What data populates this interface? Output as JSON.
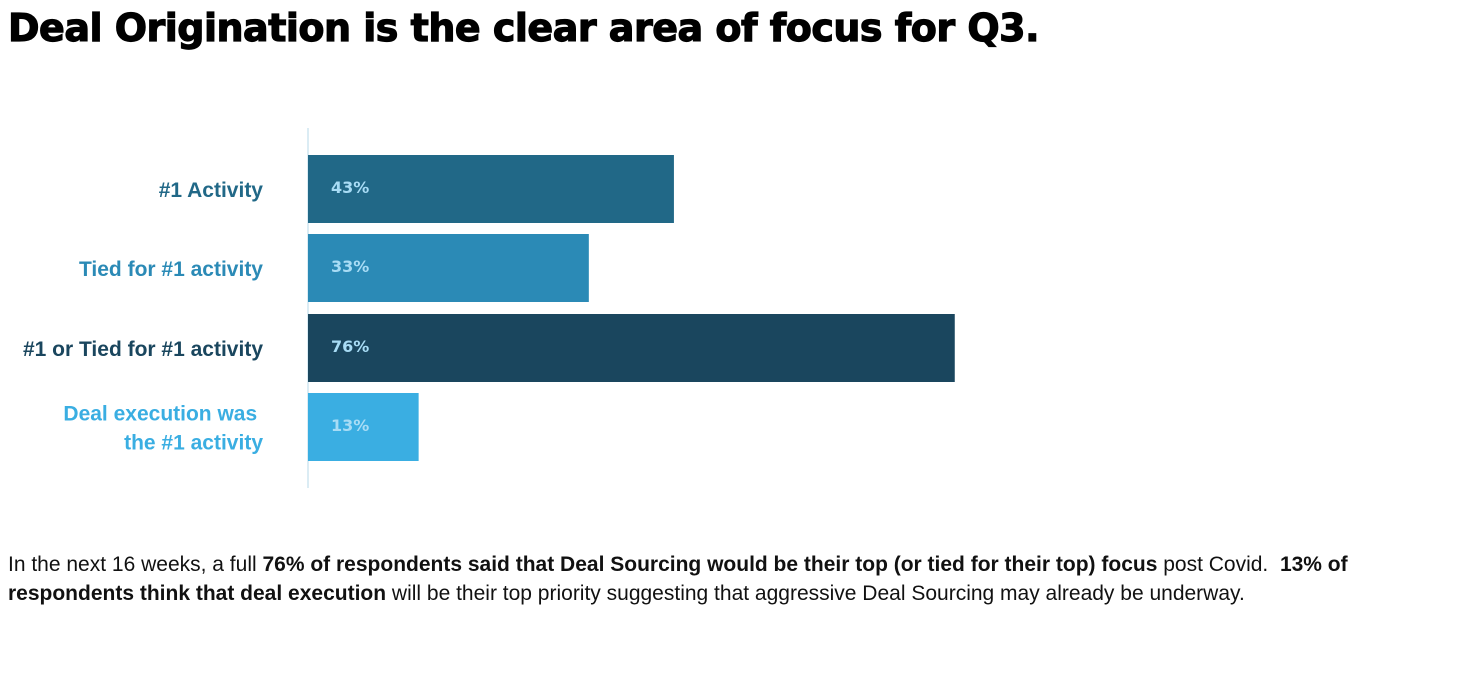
{
  "title": "Deal Origination is the clear area of focus for Q3.",
  "chart_data": {
    "type": "bar",
    "orientation": "horizontal",
    "title": "",
    "xlabel": "",
    "ylabel": "",
    "xlim": [
      0,
      100
    ],
    "grid": false,
    "legend": "none",
    "categories": [
      "#1 Activity",
      "Tied for #1 activity",
      "#1 or Tied for #1 activity",
      "Deal execution was the #1 activity"
    ],
    "category_label_lines": [
      [
        "#1 Activity"
      ],
      [
        "Tied for #1 activity"
      ],
      [
        "#1 or Tied for #1 activity"
      ],
      [
        "Deal execution was ",
        "the #1 activity"
      ]
    ],
    "values": [
      43,
      33,
      76,
      13
    ],
    "value_labels": [
      "43%",
      "33%",
      "76%",
      "13%"
    ],
    "colors": [
      "#216887",
      "#2b8ab6",
      "#1a465e",
      "#3aaee2"
    ],
    "value_label_color": "#a8dcf5"
  },
  "paragraph": {
    "segments": [
      {
        "text": "In the next 16 weeks, a full ",
        "bold": false
      },
      {
        "text": "76% of respondents said that Deal Sourcing would be their top (or tied for their top) focus",
        "bold": true
      },
      {
        "text": " post Covid.  ",
        "bold": false
      },
      {
        "text": "13% of respondents think that deal execution",
        "bold": true
      },
      {
        "text": " will be their top priority suggesting that aggressive Deal Sourcing may already be underway.",
        "bold": false
      }
    ]
  }
}
